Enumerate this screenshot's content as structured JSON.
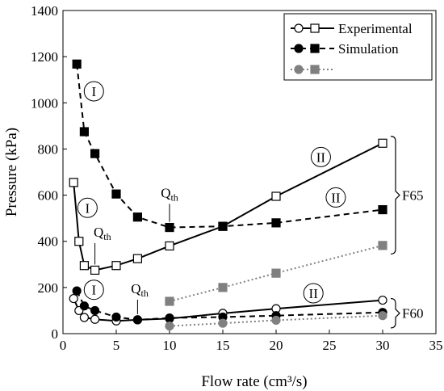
{
  "chart_data": {
    "type": "line",
    "xlabel": "Flow rate (cm³/s)",
    "ylabel": "Pressure (kPa)",
    "xlim": [
      0,
      35
    ],
    "ylim": [
      0,
      1400
    ],
    "xticks": [
      0,
      5,
      10,
      15,
      20,
      25,
      30,
      35
    ],
    "yticks": [
      0,
      200,
      400,
      600,
      800,
      1000,
      1200,
      1400
    ],
    "grid": false,
    "legend": {
      "placement": "top-right",
      "entries": [
        {
          "label": "Experimental",
          "line": "solid",
          "color": "#000000",
          "markers": [
            "open-circle",
            "open-square"
          ]
        },
        {
          "label": "Simulation",
          "line": "dashed",
          "color": "#000000",
          "markers": [
            "filled-circle",
            "filled-square"
          ]
        },
        {
          "label": "",
          "line": "dotted",
          "color": "#808080",
          "markers": [
            "filled-circle",
            "filled-square"
          ]
        }
      ]
    },
    "series": [
      {
        "style": "exp",
        "marker": "square",
        "x": [
          1,
          1.5,
          2,
          3,
          5,
          7,
          10,
          15,
          20,
          30
        ],
        "y": [
          655,
          400,
          295,
          275,
          295,
          325,
          380,
          465,
          595,
          825
        ]
      },
      {
        "style": "sim",
        "marker": "square",
        "x": [
          1.3,
          2,
          3,
          5,
          7,
          10,
          15,
          20,
          30
        ],
        "y": [
          1168,
          875,
          780,
          605,
          505,
          460,
          465,
          480,
          537
        ]
      },
      {
        "style": "gray",
        "marker": "square",
        "x": [
          10,
          15,
          20,
          30
        ],
        "y": [
          140,
          200,
          262,
          382
        ]
      },
      {
        "style": "exp",
        "marker": "circle",
        "x": [
          1,
          1.5,
          2,
          3,
          5,
          7,
          10,
          15,
          20,
          30
        ],
        "y": [
          152,
          100,
          70,
          62,
          55,
          60,
          65,
          88,
          108,
          145
        ]
      },
      {
        "style": "sim",
        "marker": "circle",
        "x": [
          1.3,
          2,
          3,
          5,
          7,
          10,
          15,
          20,
          30
        ],
        "y": [
          185,
          120,
          100,
          72,
          60,
          68,
          72,
          78,
          92
        ]
      },
      {
        "style": "gray",
        "marker": "circle",
        "x": [
          10,
          15,
          20,
          30
        ],
        "y": [
          33,
          45,
          58,
          78
        ]
      }
    ],
    "annotations": {
      "circled": [
        {
          "text": "I",
          "x": 2.9,
          "y": 1050
        },
        {
          "text": "I",
          "x": 2.3,
          "y": 545
        },
        {
          "text": "I",
          "x": 2.9,
          "y": 190
        },
        {
          "text": "II",
          "x": 24.2,
          "y": 765
        },
        {
          "text": "II",
          "x": 25.6,
          "y": 590
        },
        {
          "text": "II",
          "x": 23.5,
          "y": 175
        }
      ],
      "thresholds": [
        {
          "label": "Q",
          "sub": "th",
          "x": 10,
          "y": 460,
          "label_x": 10,
          "label_y": 590
        },
        {
          "label": "Q",
          "sub": "th",
          "x": 3,
          "y": 275,
          "label_x": 3.7,
          "label_y": 420
        },
        {
          "label": "Q",
          "sub": "th",
          "x": 7,
          "y": 60,
          "label_x": 7.2,
          "label_y": 175
        }
      ],
      "brackets": [
        {
          "label": "F65",
          "y_top": 855,
          "y_bottom": 345
        },
        {
          "label": "F60",
          "y_top": 152,
          "y_bottom": 25
        }
      ]
    }
  }
}
